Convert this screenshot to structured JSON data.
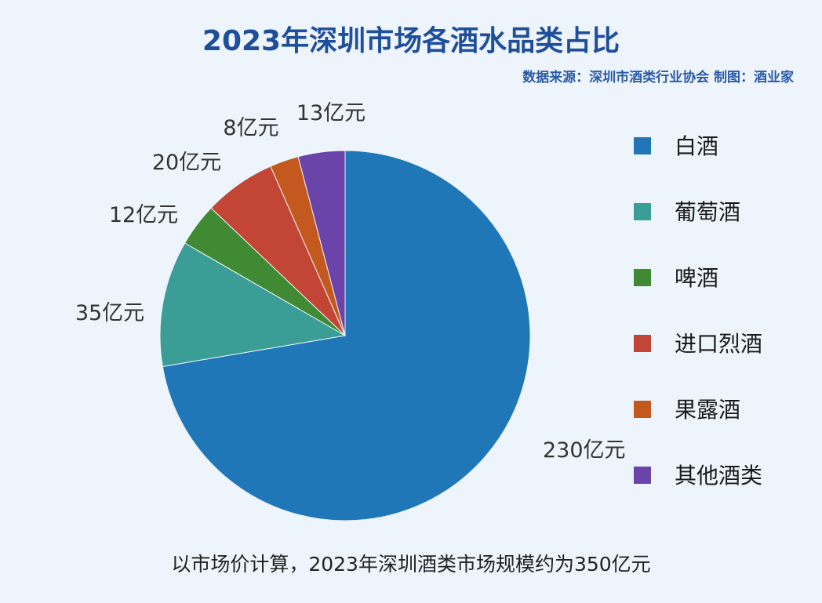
{
  "chart_data": {
    "type": "pie",
    "title": "2023年深圳市场各酒水品类占比",
    "subtitle": "数据来源：深圳市酒类行业协会    制图：酒业家",
    "unit": "亿元",
    "categories": [
      "白酒",
      "葡萄酒",
      "啤酒",
      "进口烈酒",
      "果露酒",
      "其他酒类"
    ],
    "values": [
      230,
      35,
      12,
      20,
      8,
      13
    ],
    "data_labels": [
      "230亿元",
      "35亿元",
      "12亿元",
      "20亿元",
      "8亿元",
      "13亿元"
    ],
    "colors": [
      "#1f77b8",
      "#3b9e96",
      "#3f8a32",
      "#c24536",
      "#c4591f",
      "#6a44a8"
    ],
    "start_angle_deg": 0,
    "direction": "clockwise",
    "legend_position": "right",
    "footnote": "以市场价计算，2023年深圳酒类市场规模约为350亿元"
  }
}
